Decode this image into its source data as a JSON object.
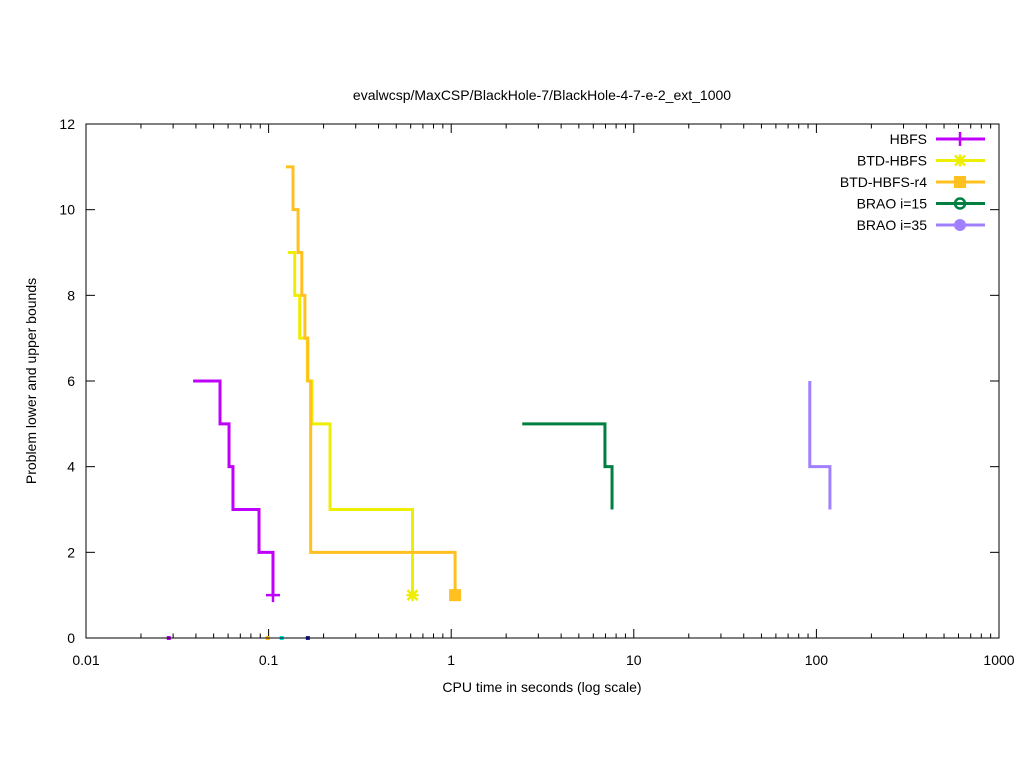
{
  "chart_data": {
    "type": "line",
    "title": "evalwcsp/MaxCSP/BlackHole-7/BlackHole-4-7-e-2_ext_1000",
    "xlabel": "CPU time in seconds (log scale)",
    "ylabel": "Problem lower and upper bounds",
    "xscale": "log",
    "xlim": [
      0.01,
      1000
    ],
    "ylim": [
      0,
      12
    ],
    "x_ticks": [
      0.01,
      0.1,
      1,
      10,
      100,
      1000
    ],
    "x_tick_labels": [
      "0.01",
      "0.1",
      "1",
      "10",
      "100",
      "1000"
    ],
    "y_ticks": [
      0,
      2,
      4,
      6,
      8,
      10,
      12
    ],
    "y_tick_labels": [
      "0",
      "2",
      "4",
      "6",
      "8",
      "10",
      "12"
    ],
    "grid": false,
    "legend_position": "top-right",
    "series": [
      {
        "name": "HBFS",
        "color": "#c000ff",
        "marker": "plus",
        "points": [
          [
            0.0386,
            6
          ],
          [
            0.0542,
            5
          ],
          [
            0.0607,
            4
          ],
          [
            0.0638,
            3
          ],
          [
            0.0886,
            2
          ],
          [
            0.1057,
            1
          ]
        ]
      },
      {
        "name": "BTD-HBFS",
        "color": "#eeee00",
        "marker": "star",
        "points": [
          [
            0.1275,
            9
          ],
          [
            0.139,
            8
          ],
          [
            0.148,
            7
          ],
          [
            0.163,
            6
          ],
          [
            0.173,
            5
          ],
          [
            0.217,
            3
          ],
          [
            0.614,
            1
          ]
        ]
      },
      {
        "name": "BTD-HBFS-r4",
        "color": "#ffc020",
        "marker": "square",
        "points": [
          [
            0.1245,
            11
          ],
          [
            0.136,
            10
          ],
          [
            0.145,
            9
          ],
          [
            0.152,
            8
          ],
          [
            0.158,
            7
          ],
          [
            0.164,
            6
          ],
          [
            0.17,
            2
          ],
          [
            1.05,
            1
          ]
        ]
      },
      {
        "name": "BRAO i=15",
        "color": "#008040",
        "marker": "circle-open",
        "points": [
          [
            2.45,
            5
          ],
          [
            6.95,
            4
          ],
          [
            7.6,
            3
          ]
        ]
      },
      {
        "name": "BRAO i=35",
        "color": "#a080ff",
        "marker": "circle",
        "points": [
          [
            92,
            6
          ],
          [
            92,
            4
          ],
          [
            118.6,
            3
          ]
        ]
      }
    ],
    "axis_points": [
      {
        "x": 0.0284,
        "color": "#c000ff"
      },
      {
        "x": 0.099,
        "color": "#ffc020"
      },
      {
        "x": 0.118,
        "color": "#00e0e0"
      },
      {
        "x": 0.164,
        "color": "#2020a0"
      }
    ]
  }
}
